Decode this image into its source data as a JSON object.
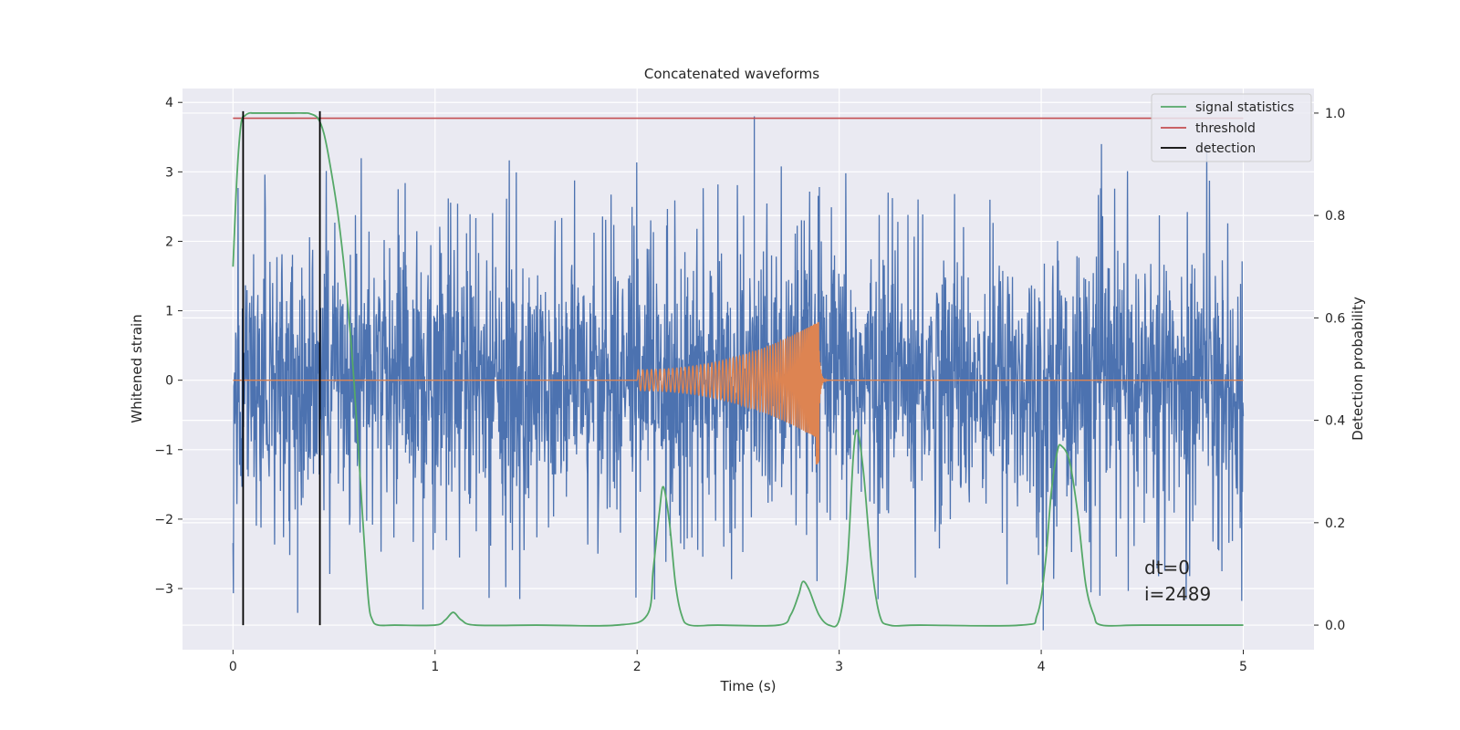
{
  "chart_data": {
    "type": "line",
    "title": "Concatenated waveforms",
    "xlabel": "Time (s)",
    "ylabel": "Whitened strain",
    "ylabel_right": "Detection probability",
    "xlim": [
      -0.25,
      5.35
    ],
    "ylim": [
      -3.88,
      4.2
    ],
    "ylim_right": [
      -0.048,
      1.048
    ],
    "x_ticks": [
      0,
      1,
      2,
      3,
      4,
      5
    ],
    "y_ticks": [
      -3,
      -2,
      -1,
      0,
      1,
      2,
      3,
      4
    ],
    "y_ticks_right": [
      0.0,
      0.2,
      0.4,
      0.6,
      0.8,
      1.0
    ],
    "y_tick_labels_right": [
      "0.0",
      "0.2",
      "0.4",
      "0.6",
      "0.8",
      "1.0"
    ],
    "grid": true,
    "legend_position": "top-right",
    "legend": [
      "signal statistics",
      "threshold",
      "detection"
    ],
    "colors": {
      "strain": "#4c72b0",
      "waveform": "#dd8452",
      "signal_statistics": "#55a868",
      "threshold": "#c44e52",
      "detection": "#000000",
      "background": "#eaeaf2"
    },
    "series": [
      {
        "name": "whitened strain (noise)",
        "axis": "left",
        "x_range": [
          0,
          5
        ],
        "envelope": {
          "typical": 1.5,
          "peak_max": 3.8,
          "peak_min": -3.6
        }
      },
      {
        "name": "injected waveform",
        "axis": "left",
        "x_range": [
          0,
          5
        ],
        "chirp": {
          "start": 2.0,
          "merger": 2.9,
          "start_amp": 0.15,
          "peak_amp": 0.85,
          "peak_min": -1.25,
          "start_freq": 45
        }
      },
      {
        "name": "signal statistics",
        "axis": "right",
        "x": [
          0.0,
          0.02,
          0.04,
          0.06,
          0.08,
          0.1,
          0.15,
          0.2,
          0.25,
          0.3,
          0.35,
          0.38,
          0.42,
          0.45,
          0.48,
          0.52,
          0.56,
          0.6,
          0.64,
          0.67,
          0.69,
          0.72,
          0.8,
          1.0,
          1.05,
          1.09,
          1.13,
          1.2,
          1.5,
          1.9,
          2.05,
          2.08,
          2.11,
          2.13,
          2.16,
          2.19,
          2.22,
          2.26,
          2.4,
          2.7,
          2.76,
          2.8,
          2.82,
          2.85,
          2.9,
          2.95,
          3.0,
          3.04,
          3.07,
          3.09,
          3.12,
          3.16,
          3.2,
          3.25,
          3.4,
          3.9,
          3.98,
          4.02,
          4.05,
          4.08,
          4.1,
          4.14,
          4.18,
          4.22,
          4.26,
          4.3,
          4.5,
          5.0
        ],
        "y": [
          0.7,
          0.88,
          0.98,
          0.995,
          1.0,
          1.0,
          1.0,
          1.0,
          1.0,
          1.0,
          1.0,
          0.999,
          0.99,
          0.96,
          0.9,
          0.8,
          0.66,
          0.47,
          0.22,
          0.05,
          0.01,
          0.0,
          0.0,
          0.0,
          0.01,
          0.025,
          0.01,
          0.0,
          0.0,
          0.0,
          0.02,
          0.11,
          0.22,
          0.27,
          0.2,
          0.08,
          0.02,
          0.0,
          0.0,
          0.0,
          0.02,
          0.06,
          0.085,
          0.07,
          0.02,
          0.0,
          0.01,
          0.12,
          0.33,
          0.38,
          0.3,
          0.12,
          0.02,
          0.0,
          0.0,
          0.0,
          0.02,
          0.12,
          0.26,
          0.34,
          0.35,
          0.32,
          0.22,
          0.08,
          0.02,
          0.0,
          0.0,
          0.0
        ]
      },
      {
        "name": "threshold",
        "axis": "right",
        "x": [
          0,
          5
        ],
        "y": [
          0.99,
          0.99
        ]
      }
    ],
    "detections": [
      0.05,
      0.43
    ],
    "annotations": [
      "dt=0",
      "i=2489"
    ]
  }
}
